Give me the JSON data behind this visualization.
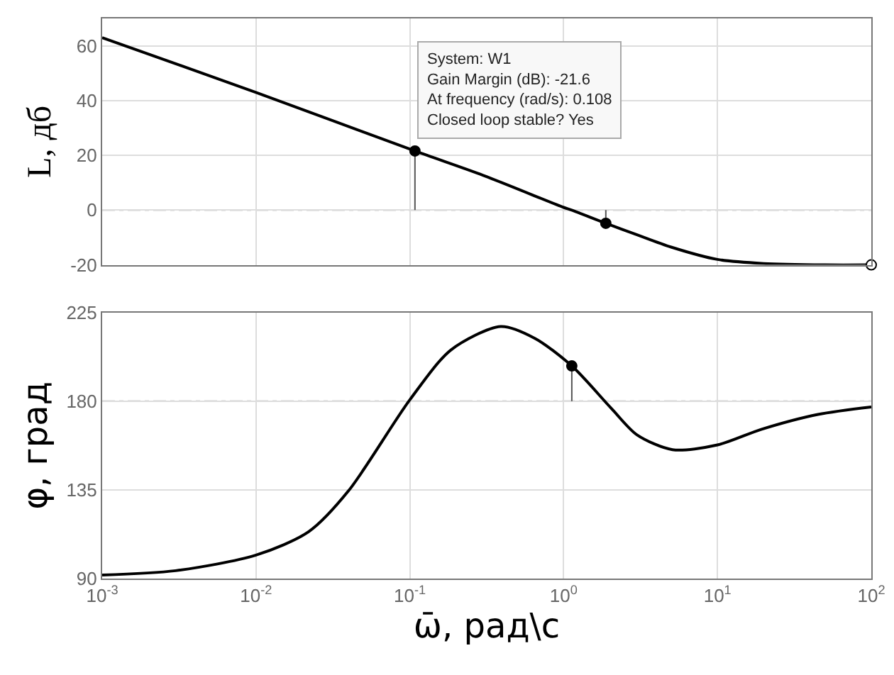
{
  "chart_data": [
    {
      "type": "line",
      "ylabel": "L, дб",
      "log": "x",
      "grid": true,
      "tick_labels": "y",
      "xlim": [
        0.001,
        100
      ],
      "ylim": [
        -20,
        70
      ],
      "yticks": [
        -20,
        0,
        20,
        40,
        60
      ],
      "series": [
        {
          "color": "#000000",
          "x": [
            0.001,
            0.01,
            0.108,
            0.3,
            1,
            1.13,
            1.88,
            3,
            5,
            10,
            20,
            50,
            100
          ],
          "values": [
            63,
            43,
            21.6,
            12.7,
            1,
            0,
            -4.8,
            -9,
            -13.5,
            -18,
            -19.5,
            -20,
            -20
          ]
        },
        {
          "type": "line",
          "color": "#555555",
          "x": [
            0.108,
            0.108,
            null,
            1.88,
            1.88
          ],
          "values": [
            0,
            21.6,
            null,
            0,
            -4.8
          ]
        },
        {
          "type": "scatter",
          "color": "#000000",
          "marker": "circle",
          "x": [
            0.108,
            1.88
          ],
          "values": [
            21.6,
            -4.8
          ]
        },
        {
          "type": "scatter",
          "color": "#ffffff",
          "marker": "circle",
          "x": [
            100
          ],
          "values": [
            -20
          ]
        }
      ],
      "ref_lines": [
        {
          "axis": "y",
          "value": 0,
          "color": "#999999",
          "line_style": "dashdot"
        }
      ],
      "annotations": [
        {
          "text": "System: W1\nGain Margin (dB): -21.6\nAt frequency (rad/s): 0.108\nClosed loop stable? Yes",
          "x": 0.108,
          "y": 21.6
        }
      ]
    },
    {
      "type": "line",
      "ylabel": "φ, град",
      "xlabel": "ω̄, рад\\c",
      "log": "x",
      "grid": true,
      "xlim": [
        0.001,
        100
      ],
      "ylim": [
        90,
        225
      ],
      "yticks": [
        90,
        135,
        180,
        225
      ],
      "xticks": [
        {
          "value": 0.001,
          "label": "10$^{-3}$"
        },
        {
          "value": 0.01,
          "label": "10$^{-2}$"
        },
        {
          "value": 0.1,
          "label": "10$^{-1}$"
        },
        {
          "value": 1,
          "label": "10$^{0}$"
        },
        {
          "value": 10,
          "label": "10$^{1}$"
        },
        {
          "value": 100,
          "label": "10$^{2}$"
        }
      ],
      "series": [
        {
          "color": "#000000",
          "x": [
            0.001,
            0.003,
            0.01,
            0.022,
            0.04,
            0.1,
            0.185,
            0.39,
            0.65,
            1.13,
            2.05,
            3,
            5.1,
            10,
            19.4,
            45,
            100
          ],
          "values": [
            91.8,
            94,
            101.9,
            113.8,
            134.6,
            180.7,
            206,
            217.9,
            211.9,
            197.9,
            176.2,
            162.9,
            155.4,
            157.8,
            165.8,
            173.3,
            177.1
          ]
        },
        {
          "type": "line",
          "color": "#555555",
          "x": [
            1.13,
            1.13
          ],
          "values": [
            180,
            197.9
          ]
        },
        {
          "type": "scatter",
          "color": "#000000",
          "marker": "circle",
          "x": [
            1.13
          ],
          "values": [
            197.9
          ]
        }
      ],
      "ref_lines": [
        {
          "axis": "y",
          "value": 180,
          "color": "#999999",
          "line_style": "dashdot"
        }
      ]
    }
  ]
}
